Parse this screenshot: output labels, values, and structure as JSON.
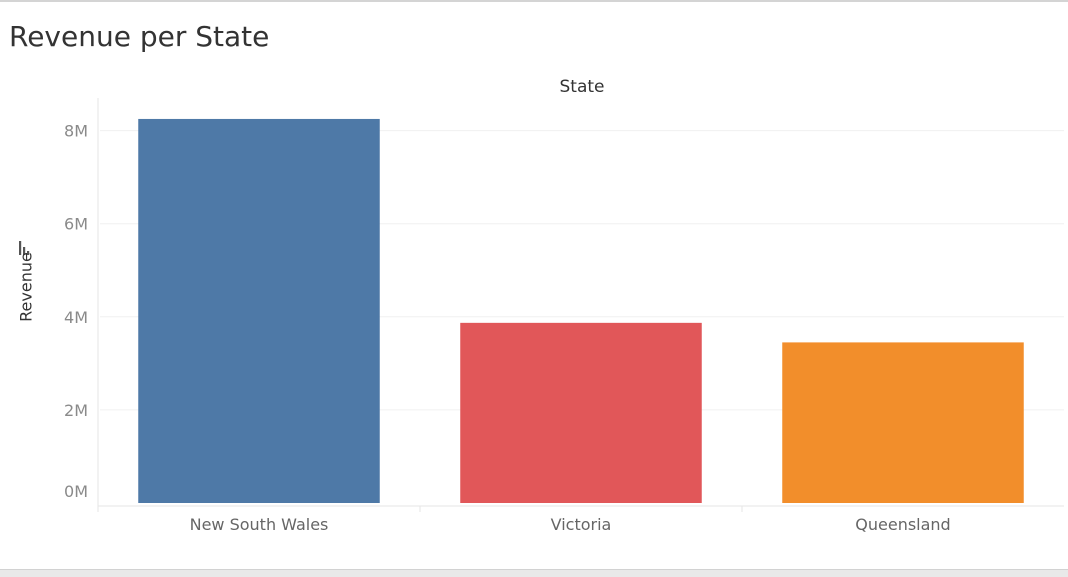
{
  "chart_data": {
    "type": "bar",
    "title": "Revenue per State",
    "column_header": "State",
    "ylabel": "Revenue",
    "xlabel": "",
    "categories": [
      "New South Wales",
      "Victoria",
      "Queensland"
    ],
    "values": [
      8250000,
      3870000,
      3450000
    ],
    "colors": [
      "#4e79a7",
      "#e15759",
      "#f28e2b"
    ],
    "yticks": [
      0,
      2000000,
      4000000,
      6000000,
      8000000
    ],
    "ytick_labels": [
      "0M",
      "2M",
      "4M",
      "6M",
      "8M"
    ],
    "ylim": [
      0,
      8700000
    ],
    "grid": true,
    "legend": "none"
  }
}
